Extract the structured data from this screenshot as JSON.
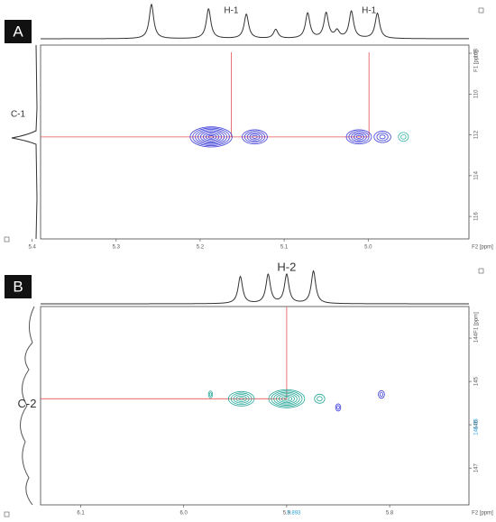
{
  "panels": [
    {
      "label": "A",
      "x_axis": {
        "title": "F2 [ppm]",
        "lim": [
          5.39,
          4.88
        ],
        "ticks": [
          5.4,
          5.3,
          5.2,
          5.1,
          {
            "value": 5,
            "label": "5.0"
          }
        ]
      },
      "y_axis": {
        "title": "F1 [ppm]",
        "lim": [
          107.6,
          117.1
        ],
        "ticks": [
          108,
          110,
          112,
          114,
          116
        ]
      },
      "f2_label": "H-1",
      "f1_label": "C-1",
      "crosshair": {
        "x": [
          5.163,
          4.999
        ],
        "y": 112.1
      },
      "projection_peaks": [
        {
          "x": 5.258,
          "h": 38
        },
        {
          "x": 5.19,
          "h": 33
        },
        {
          "x": 5.145,
          "h": 27
        },
        {
          "x": 5.11,
          "h": 10
        },
        {
          "x": 5.072,
          "h": 28
        },
        {
          "x": 5.05,
          "h": 28
        },
        {
          "x": 5.037,
          "h": 8
        },
        {
          "x": 5.02,
          "h": 30
        },
        {
          "x": 4.989,
          "h": 28
        }
      ],
      "cross_peaks": [
        {
          "x": 5.187,
          "y": 112.1,
          "w": 0.05,
          "color": "#3b3bd9"
        },
        {
          "x": 5.135,
          "y": 112.1,
          "w": 0.03,
          "color": "#3b3bd9"
        },
        {
          "x": 5.011,
          "y": 112.1,
          "w": 0.03,
          "color": "#3b3bd9"
        },
        {
          "x": 4.983,
          "y": 112.1,
          "w": 0.02,
          "color": "#3b3bd9"
        },
        {
          "x": 4.958,
          "y": 112.1,
          "w": 0.012,
          "color": "#3cb8a8"
        }
      ]
    },
    {
      "label": "B",
      "x_axis": {
        "title": "F2 [ppm]",
        "lim": [
          6.139,
          5.723
        ],
        "ticks": [
          6.1,
          {
            "value": 6,
            "label": "6.0"
          },
          5.9,
          5.8
        ]
      },
      "y_axis": {
        "title": "F1 [ppm]",
        "lim": [
          143.27,
          147.85
        ],
        "ticks": [
          144,
          145,
          146,
          147
        ]
      },
      "f2_label": "H-2",
      "f1_label": "C-2",
      "crosshair": {
        "x": [
          5.9
        ],
        "y": 145.4
      },
      "cursor": {
        "x": 5.893,
        "y": 146.05
      },
      "projection_peaks": [
        {
          "x": 5.945,
          "h": 30
        },
        {
          "x": 5.918,
          "h": 32
        },
        {
          "x": 5.9,
          "h": 32
        },
        {
          "x": 5.874,
          "h": 36
        }
      ],
      "cross_peaks": [
        {
          "x": 5.944,
          "y": 145.4,
          "w": 0.025,
          "color": "#2aa89a"
        },
        {
          "x": 5.9,
          "y": 145.4,
          "w": 0.035,
          "color": "#2aa89a"
        },
        {
          "x": 5.868,
          "y": 145.4,
          "w": 0.01,
          "color": "#2aa89a"
        },
        {
          "x": 5.85,
          "y": 145.6,
          "w": 0.005,
          "color": "#3b3bd9"
        },
        {
          "x": 5.808,
          "y": 145.3,
          "w": 0.006,
          "color": "#3b3bd9"
        },
        {
          "x": 5.974,
          "y": 145.3,
          "w": 0.004,
          "color": "#2aa89a"
        }
      ]
    }
  ]
}
